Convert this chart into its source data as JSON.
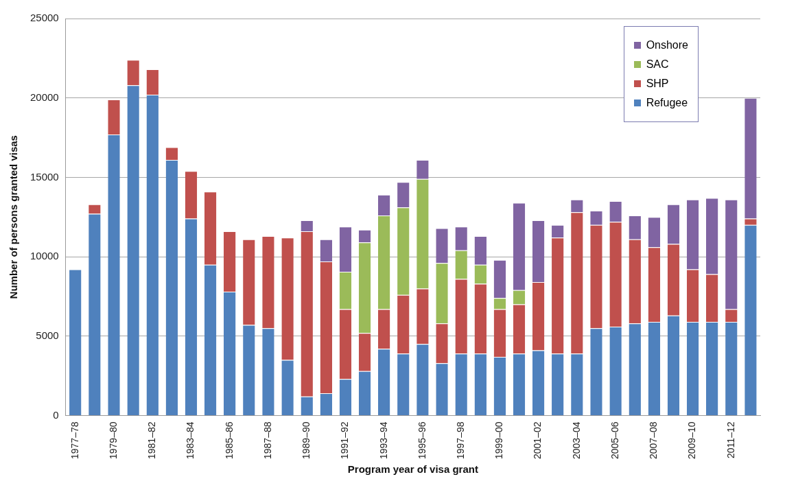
{
  "chart_data": {
    "type": "bar",
    "stacked": true,
    "xlabel": "Program year of visa grant",
    "ylabel": "Number of persons granted visas",
    "categories": [
      "1977–78",
      null,
      "1979–80",
      null,
      "1981–82",
      null,
      "1983–84",
      null,
      "1985–86",
      null,
      "1987–88",
      null,
      "1989–90",
      null,
      "1991–92",
      null,
      "1993–94",
      null,
      "1995–96",
      null,
      "1997–98",
      null,
      "1999–00",
      null,
      "2001–02",
      null,
      "2003–04",
      null,
      "2005–06",
      null,
      "2007–08",
      null,
      "2009–10",
      null,
      "2011–12",
      null
    ],
    "series": [
      {
        "name": "Refugee",
        "color": "#4f81bd",
        "values": [
          9200,
          12700,
          17700,
          20800,
          20200,
          16100,
          12400,
          9500,
          7800,
          5700,
          5500,
          3500,
          1200,
          1400,
          2300,
          2800,
          4200,
          3900,
          4500,
          3300,
          3900,
          3900,
          3700,
          3900,
          4100,
          3900,
          3900,
          5500,
          5600,
          5800,
          5900,
          6300,
          5900,
          5900,
          5900,
          12000
        ]
      },
      {
        "name": "SHP",
        "color": "#c0504d",
        "values": [
          0,
          600,
          2200,
          1600,
          1600,
          800,
          3000,
          4600,
          3800,
          5400,
          5800,
          7700,
          10400,
          8300,
          4400,
          2400,
          2500,
          3700,
          3500,
          2500,
          4700,
          4400,
          3000,
          3100,
          4300,
          7300,
          8900,
          6500,
          6600,
          5300,
          4700,
          4500,
          3300,
          3000,
          800,
          400
        ]
      },
      {
        "name": "SAC",
        "color": "#9bbb59",
        "values": [
          0,
          0,
          0,
          0,
          0,
          0,
          0,
          0,
          0,
          0,
          0,
          0,
          0,
          0,
          2350,
          5700,
          5900,
          5500,
          6900,
          3800,
          1800,
          1200,
          700,
          900,
          0,
          0,
          0,
          0,
          0,
          0,
          0,
          0,
          0,
          0,
          0,
          0
        ]
      },
      {
        "name": "Onshore",
        "color": "#8064a2",
        "values": [
          0,
          0,
          0,
          0,
          0,
          0,
          0,
          0,
          0,
          0,
          0,
          0,
          700,
          1400,
          2850,
          800,
          1300,
          1600,
          1200,
          2200,
          1500,
          1800,
          2400,
          5500,
          3900,
          800,
          800,
          900,
          1300,
          1500,
          1900,
          2500,
          4400,
          4800,
          6900,
          7600
        ]
      }
    ],
    "ylim": [
      0,
      25000
    ],
    "yticks": [
      0,
      5000,
      10000,
      15000,
      20000,
      25000
    ],
    "grid": "y",
    "legend": "top right"
  }
}
